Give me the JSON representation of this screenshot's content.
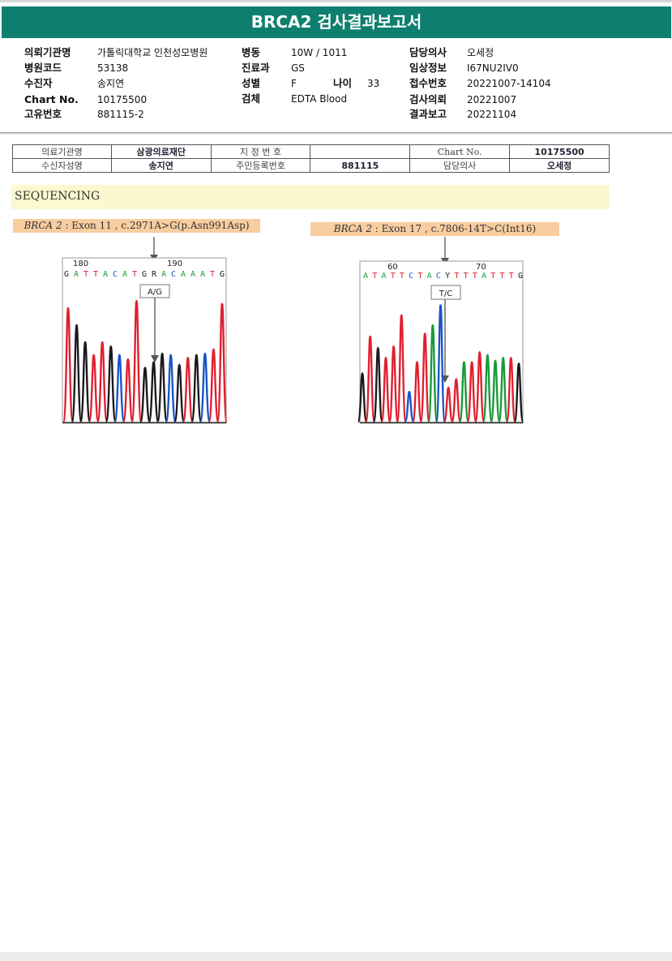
{
  "title": "BRCA2 검사결과보고서",
  "header": {
    "col1": [
      {
        "label": "의뢰기관명",
        "value": "가톨릭대학교 인천성모병원"
      },
      {
        "label": "병원코드",
        "value": "53138"
      },
      {
        "label": "수진자",
        "value": "송지연"
      },
      {
        "label": "Chart No.",
        "value": "10175500"
      },
      {
        "label": "고유번호",
        "value": "881115-2"
      }
    ],
    "col2": [
      {
        "label": "병동",
        "value": "10W / 1011"
      },
      {
        "label": "진료과",
        "value": "GS"
      },
      {
        "label": "성별",
        "value": "F"
      },
      {
        "label": "검체",
        "value": "EDTA Blood"
      }
    ],
    "age": {
      "label": "나이",
      "value": "33"
    },
    "col3": [
      {
        "label": "담당의사",
        "value": "오세정"
      },
      {
        "label": "임상정보",
        "value": "I67NU2IV0"
      },
      {
        "label": "접수번호",
        "value": "20221007-14104"
      },
      {
        "label": "검사의뢰",
        "value": "20221007"
      },
      {
        "label": "결과보고",
        "value": "20221104"
      }
    ]
  },
  "info_table": {
    "r1": {
      "l1": "의료기관명",
      "v1": "삼광의료재단",
      "l2": "지 정 번 호",
      "v2": "",
      "l3": "Chart No.",
      "v3": "10175500"
    },
    "r2": {
      "l1": "수신자성명",
      "v1": "송지연",
      "l2": "주민등록번호",
      "v2": "881115",
      "l3": "담당의사",
      "v3": "오세정"
    }
  },
  "section": "SEQUENCING",
  "mutations": [
    {
      "gene": "BRCA 2",
      "desc": " : Exon 11 , c.2971A>G(p.Asn991Asp)",
      "pos_start": "180",
      "pos_mid": "190",
      "bases": [
        "G",
        "A",
        "T",
        "T",
        "A",
        "C",
        "A",
        "T",
        "G",
        "R",
        "A",
        "C",
        "A",
        "A",
        "A",
        "T",
        "G"
      ],
      "call": "A/G",
      "peaks": [
        {
          "base": "T",
          "h": 0.8
        },
        {
          "base": "G",
          "h": 0.68
        },
        {
          "base": "G",
          "h": 0.56
        },
        {
          "base": "T",
          "h": 0.47
        },
        {
          "base": "T",
          "h": 0.56
        },
        {
          "base": "G",
          "h": 0.53
        },
        {
          "base": "C",
          "h": 0.47
        },
        {
          "base": "T",
          "h": 0.44
        },
        {
          "base": "T",
          "h": 0.85
        },
        {
          "base": "G",
          "h": 0.38
        },
        {
          "base": "G",
          "h": 0.42
        },
        {
          "base": "G",
          "h": 0.48
        },
        {
          "base": "C",
          "h": 0.47
        },
        {
          "base": "G",
          "h": 0.4
        },
        {
          "base": "T",
          "h": 0.45
        },
        {
          "base": "G",
          "h": 0.47
        },
        {
          "base": "C",
          "h": 0.48
        },
        {
          "base": "T",
          "h": 0.51
        },
        {
          "base": "T",
          "h": 0.83
        }
      ],
      "colors": {
        "A": "#1a9a3a",
        "C": "#1a55c8",
        "G": "#1a1a1a",
        "T": "#e02030"
      }
    },
    {
      "gene": "BRCA 2",
      "desc": " : Exon 17 , c.7806-14T>C(Int16)",
      "pos_start": "60",
      "pos_mid": "70",
      "bases": [
        "A",
        "T",
        "A",
        "T",
        "T",
        "C",
        "T",
        "A",
        "C",
        "Y",
        "T",
        "T",
        "T",
        "A",
        "T",
        "T",
        "T",
        "G"
      ],
      "call": "T/C",
      "peaks": [
        {
          "base": "G",
          "h": 0.34
        },
        {
          "base": "T",
          "h": 0.6
        },
        {
          "base": "G",
          "h": 0.52
        },
        {
          "base": "T",
          "h": 0.45
        },
        {
          "base": "T",
          "h": 0.53
        },
        {
          "base": "T",
          "h": 0.75
        },
        {
          "base": "C",
          "h": 0.21
        },
        {
          "base": "T",
          "h": 0.42
        },
        {
          "base": "T",
          "h": 0.62
        },
        {
          "base": "A",
          "h": 0.68
        },
        {
          "base": "C",
          "h": 0.82
        },
        {
          "base": "T",
          "h": 0.24
        },
        {
          "base": "T",
          "h": 0.3
        },
        {
          "base": "A",
          "h": 0.42
        },
        {
          "base": "T",
          "h": 0.42
        },
        {
          "base": "T",
          "h": 0.49
        },
        {
          "base": "A",
          "h": 0.47
        },
        {
          "base": "A",
          "h": 0.43
        },
        {
          "base": "A",
          "h": 0.45
        },
        {
          "base": "T",
          "h": 0.45
        },
        {
          "base": "G",
          "h": 0.41
        }
      ],
      "colors": {
        "A": "#1a9a3a",
        "C": "#1a55c8",
        "G": "#1a1a1a",
        "T": "#e02030"
      }
    }
  ]
}
